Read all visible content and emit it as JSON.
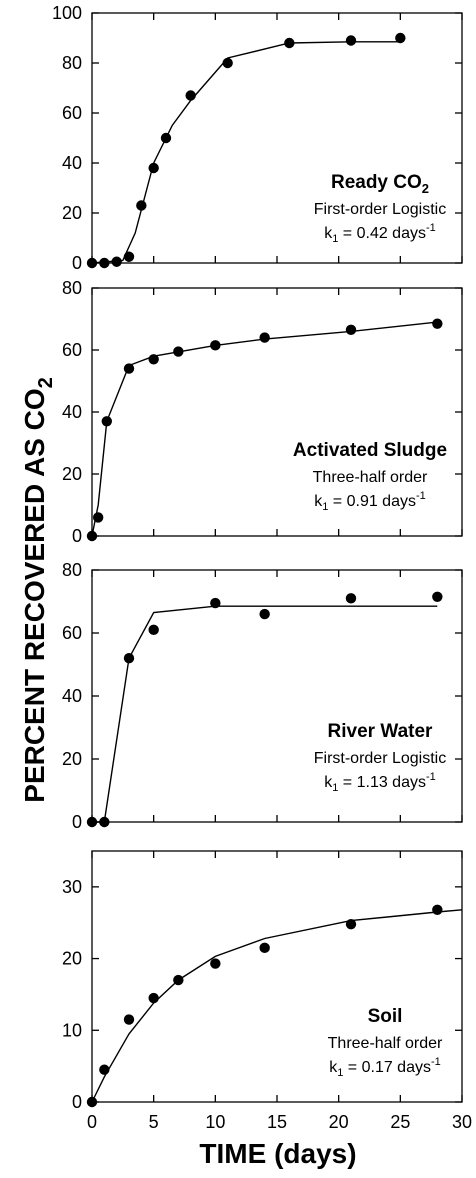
{
  "figure": {
    "ylabel": "PERCENT RECOVERED AS CO",
    "ylabel_sub": "2",
    "xlabel": "TIME (days)"
  },
  "chart_data": [
    {
      "type": "scatter",
      "xlim": [
        0,
        30
      ],
      "ylim": [
        0,
        100
      ],
      "yticks": [
        0,
        20,
        40,
        60,
        80,
        100
      ],
      "xticks": [
        0,
        5,
        10,
        15,
        20,
        25,
        30
      ],
      "grid": false,
      "points": [
        [
          0,
          0
        ],
        [
          1,
          0
        ],
        [
          2,
          0.5
        ],
        [
          3,
          2.5
        ],
        [
          4,
          23
        ],
        [
          5,
          38
        ],
        [
          6,
          50
        ],
        [
          8,
          67
        ],
        [
          11,
          80
        ],
        [
          16,
          88
        ],
        [
          21,
          89
        ],
        [
          25,
          90
        ]
      ],
      "fit": [
        [
          0,
          0
        ],
        [
          2.5,
          1
        ],
        [
          3.5,
          12
        ],
        [
          5,
          40
        ],
        [
          6.5,
          55
        ],
        [
          8,
          65
        ],
        [
          11,
          82
        ],
        [
          16,
          88
        ],
        [
          21,
          88.5
        ],
        [
          25,
          88.5
        ]
      ],
      "annotation": {
        "name": "Ready CO",
        "name_sub": "2",
        "model": "First-order Logistic",
        "rate_prefix": "k",
        "rate_sub": "1",
        "rate_value": " = 0.42 days",
        "rate_sup": "-1"
      }
    },
    {
      "type": "scatter",
      "xlim": [
        0,
        30
      ],
      "ylim": [
        0,
        80
      ],
      "yticks": [
        0,
        20,
        40,
        60,
        80
      ],
      "xticks": [
        0,
        5,
        10,
        15,
        20,
        25,
        30
      ],
      "grid": false,
      "points": [
        [
          0,
          0
        ],
        [
          0.5,
          6
        ],
        [
          1.2,
          37
        ],
        [
          3,
          54
        ],
        [
          5,
          57
        ],
        [
          7,
          59.5
        ],
        [
          10,
          61.5
        ],
        [
          14,
          64
        ],
        [
          21,
          66.5
        ],
        [
          28,
          68.5
        ]
      ],
      "fit": [
        [
          0,
          0
        ],
        [
          0.5,
          10
        ],
        [
          1.2,
          37
        ],
        [
          3,
          55
        ],
        [
          5,
          58
        ],
        [
          10,
          61.5
        ],
        [
          14,
          63.5
        ],
        [
          21,
          66
        ],
        [
          28,
          69
        ]
      ],
      "annotation": {
        "name": "Activated Sludge",
        "model": "Three-half order",
        "rate_prefix": "k",
        "rate_sub": "1",
        "rate_value": " = 0.91 days",
        "rate_sup": "-1"
      }
    },
    {
      "type": "scatter",
      "xlim": [
        0,
        30
      ],
      "ylim": [
        0,
        80
      ],
      "yticks": [
        0,
        20,
        40,
        60,
        80
      ],
      "xticks": [
        0,
        5,
        10,
        15,
        20,
        25,
        30
      ],
      "grid": false,
      "points": [
        [
          0,
          0
        ],
        [
          1,
          0
        ],
        [
          3,
          52
        ],
        [
          5,
          61
        ],
        [
          10,
          69.5
        ],
        [
          14,
          66
        ],
        [
          21,
          71
        ],
        [
          28,
          71.5
        ]
      ],
      "fit": [
        [
          0,
          0
        ],
        [
          1,
          0
        ],
        [
          3,
          52
        ],
        [
          5,
          66.5
        ],
        [
          10,
          68.5
        ],
        [
          28,
          68.5
        ]
      ],
      "annotation": {
        "name": "River Water",
        "model": "First-order Logistic",
        "rate_prefix": "k",
        "rate_sub": "1",
        "rate_value": " = 1.13 days",
        "rate_sup": "-1"
      }
    },
    {
      "type": "scatter",
      "xlim": [
        0,
        30
      ],
      "ylim": [
        0,
        35
      ],
      "yticks": [
        0,
        10,
        20,
        30
      ],
      "xticks": [
        0,
        5,
        10,
        15,
        20,
        25,
        30
      ],
      "xticklabels": [
        "0",
        "5",
        "10",
        "15",
        "20",
        "25",
        "30"
      ],
      "grid": false,
      "points": [
        [
          0,
          0
        ],
        [
          1,
          4.5
        ],
        [
          3,
          11.5
        ],
        [
          5,
          14.5
        ],
        [
          7,
          17
        ],
        [
          10,
          19.3
        ],
        [
          14,
          21.5
        ],
        [
          21,
          24.8
        ],
        [
          28,
          26.8
        ]
      ],
      "fit": [
        [
          0,
          0
        ],
        [
          1,
          3.5
        ],
        [
          3,
          9.5
        ],
        [
          5,
          13.8
        ],
        [
          7,
          17
        ],
        [
          10,
          20.3
        ],
        [
          14,
          22.8
        ],
        [
          21,
          25.3
        ],
        [
          28,
          26.5
        ],
        [
          30,
          26.8
        ]
      ],
      "annotation": {
        "name": "Soil",
        "model": "Three-half order",
        "rate_prefix": "k",
        "rate_sub": "1",
        "rate_value": " = 0.17 days",
        "rate_sup": "-1"
      }
    }
  ]
}
